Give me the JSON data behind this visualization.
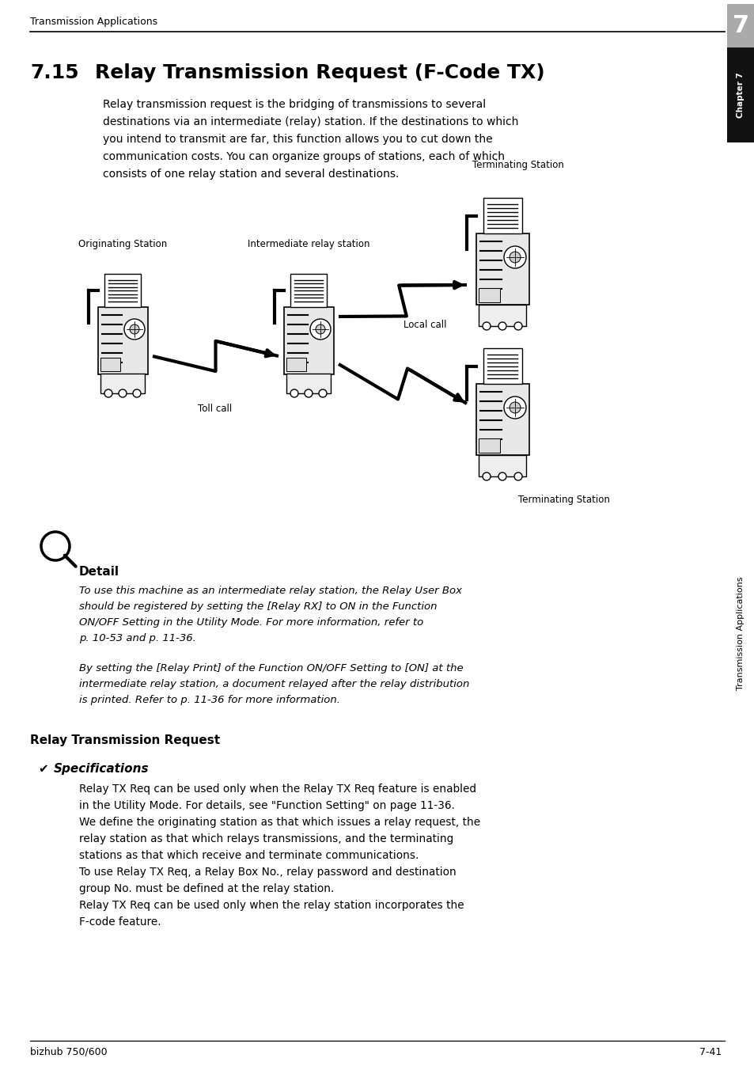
{
  "page_width": 9.54,
  "page_height": 13.52,
  "bg_color": "#ffffff",
  "header_text": "Transmission Applications",
  "chapter_number": "7",
  "chapter_tab_text": "Chapter 7",
  "sidebar_text": "Transmission Applications",
  "section_title_num": "7.15",
  "section_title_text": "Relay Transmission Request (F-Code TX)",
  "intro_text": "Relay transmission request is the bridging of transmissions to several\ndestinations via an intermediate (relay) station. If the destinations to which\nyou intend to transmit are far, this function allows you to cut down the\ncommunication costs. You can organize groups of stations, each of which\nconsists of one relay station and several destinations.",
  "diagram_labels": {
    "originating": "Originating Station",
    "intermediate": "Intermediate relay station",
    "terminating_top": "Terminating Station",
    "terminating_bottom": "Terminating Station",
    "toll_call": "Toll call",
    "local_call": "Local call"
  },
  "detail_header": "Detail",
  "detail_text1": "To use this machine as an intermediate relay station, the Relay User Box\nshould be registered by setting the [Relay RX] to ON in the Function\nON/OFF Setting in the Utility Mode. For more information, refer to\np. 10-53 and p. 11-36.",
  "detail_text2": "By setting the [Relay Print] of the Function ON/OFF Setting to [ON] at the\nintermediate relay station, a document relayed after the relay distribution\nis printed. Refer to p. 11-36 for more information.",
  "relay_tx_header": "Relay Transmission Request",
  "spec_header": "Specifications",
  "spec_text": "Relay TX Req can be used only when the Relay TX Req feature is enabled\nin the Utility Mode. For details, see \"Function Setting\" on page 11-36.\nWe define the originating station as that which issues a relay request, the\nrelay station as that which relays transmissions, and the terminating\nstations as that which receive and terminate communications.\nTo use Relay TX Req, a Relay Box No., relay password and destination\ngroup No. must be defined at the relay station.\nRelay TX Req can be used only when the relay station incorporates the\nF-code feature.",
  "footer_left": "bizhub 750/600",
  "footer_right": "7-41",
  "text_color": "#000000",
  "header_line_color": "#000000",
  "gray_tab_color": "#aaaaaa",
  "black_tab_color": "#222222",
  "fax_color": "#333333"
}
